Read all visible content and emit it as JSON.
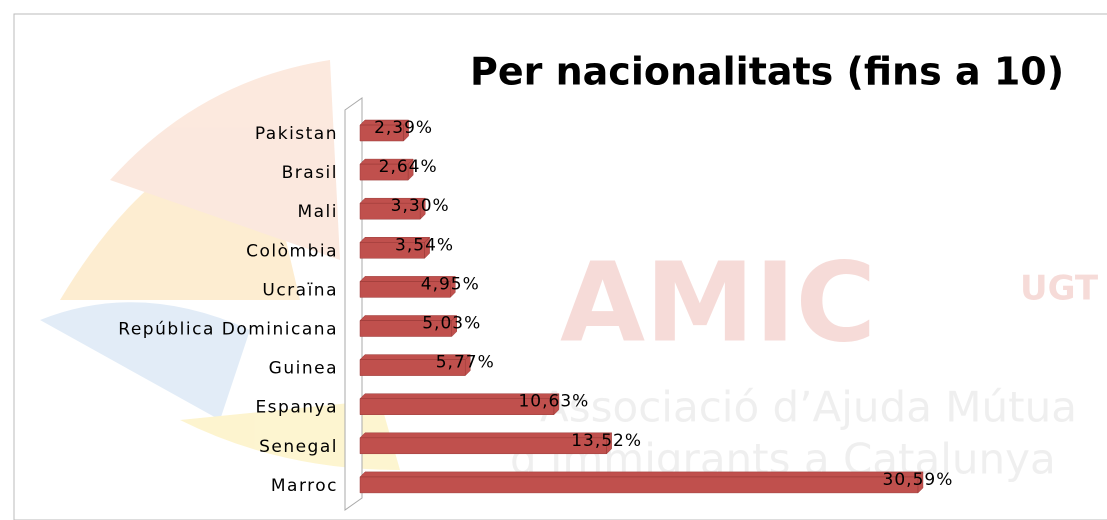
{
  "chart_data": {
    "type": "bar",
    "orientation": "horizontal",
    "title": "Per nacionalitats (fins a 10)",
    "categories": [
      "Pakistan",
      "Brasil",
      "Mali",
      "Colòmbia",
      "Ucraïna",
      "República Dominicana",
      "Guinea",
      "Espanya",
      "Senegal",
      "Marroc"
    ],
    "values": [
      2.39,
      2.64,
      3.3,
      3.54,
      4.95,
      5.03,
      5.77,
      10.63,
      13.52,
      30.59
    ],
    "value_labels": [
      "2,39%",
      "2,64%",
      "3,30%",
      "3,54%",
      "4,95%",
      "5,03%",
      "5,77%",
      "10,63%",
      "13,52%",
      "30,59%"
    ],
    "color": "#c0504d"
  },
  "watermark": {
    "logo": "AMIC",
    "union": "UGT",
    "lines": [
      "Associació d’Ajuda Mútua",
      "d’Immigrants a Catalunya"
    ]
  }
}
